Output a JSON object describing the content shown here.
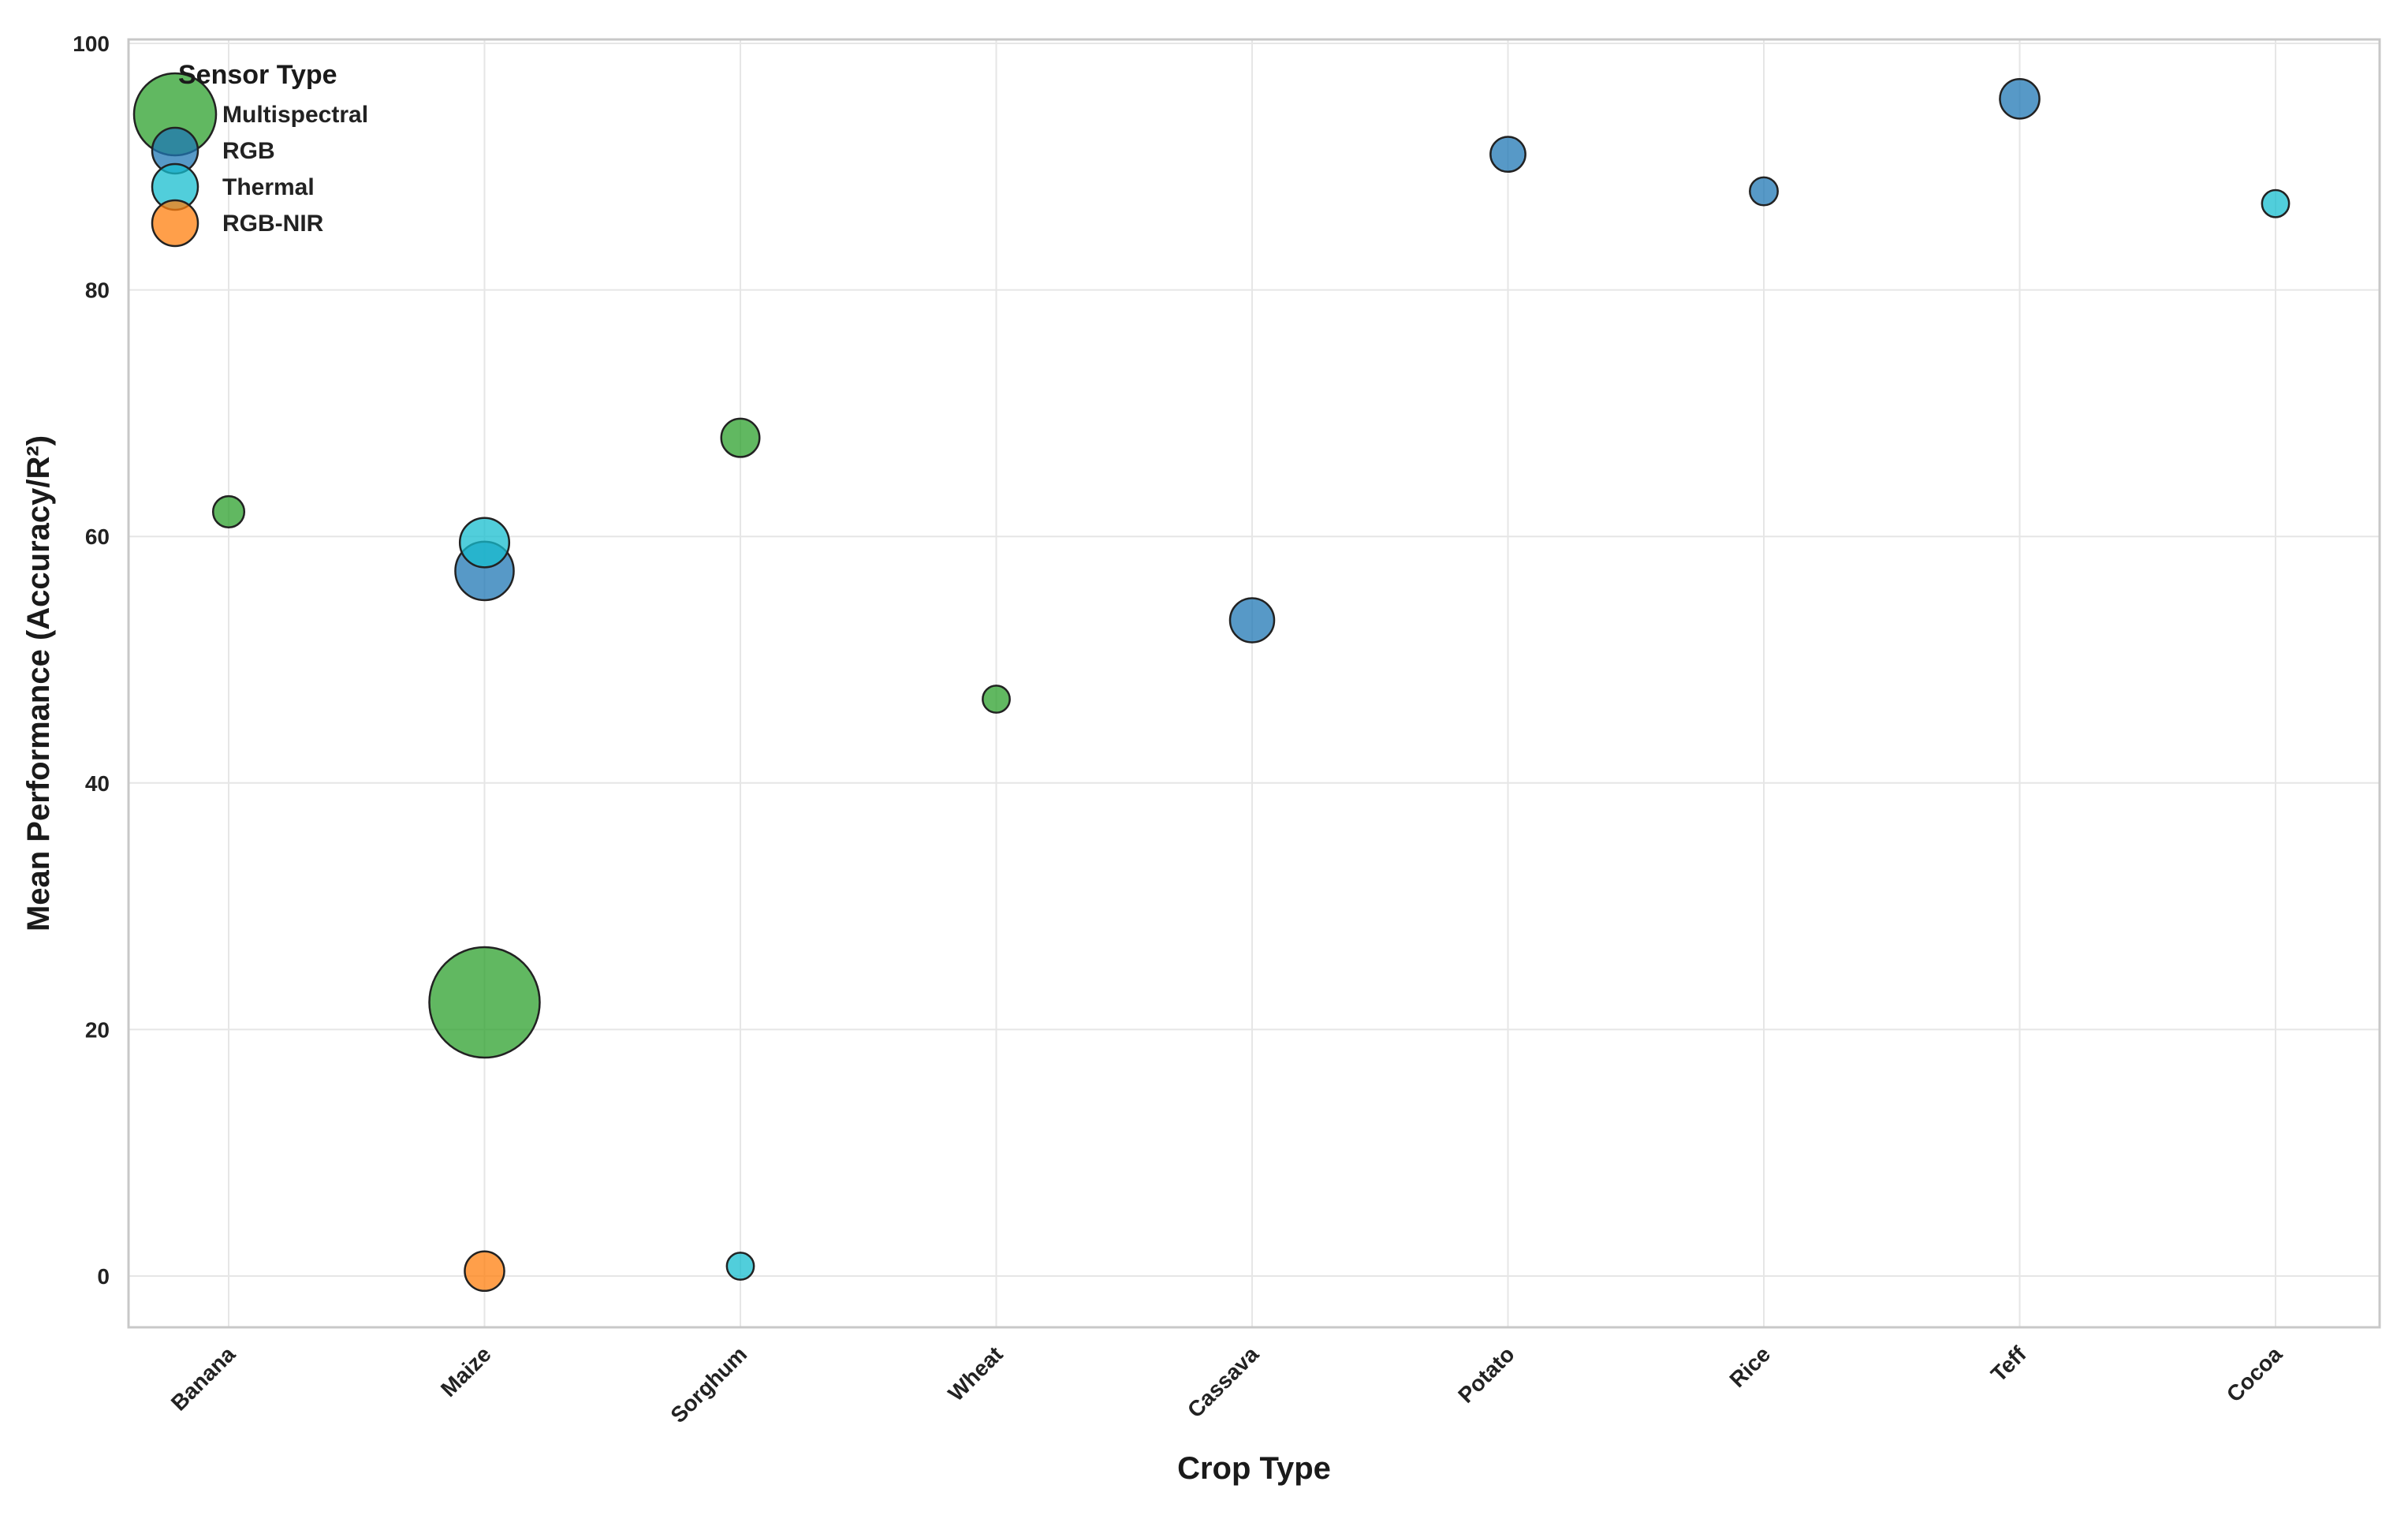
{
  "chart_data": {
    "type": "scatter",
    "title": "",
    "xlabel": "Crop Type",
    "ylabel": "Mean Performance (Accuracy/R²)",
    "categories": [
      "Banana",
      "Maize",
      "Sorghum",
      "Wheat",
      "Cassava",
      "Potato",
      "Rice",
      "Teff",
      "Cocoa"
    ],
    "ylim": [
      -4.3,
      100
    ],
    "yticks": [
      0,
      20,
      40,
      60,
      80,
      100
    ],
    "grid": true,
    "bubble_size_encoded": true,
    "legend": {
      "title": "Sensor Type",
      "placement": "top-left",
      "entries": [
        "Multispectral",
        "RGB",
        "Thermal",
        "RGB-NIR"
      ]
    },
    "series": [
      {
        "name": "Multispectral",
        "color": "#2ca02c",
        "points": [
          {
            "x": "Banana",
            "y": 62.0,
            "size": 2
          },
          {
            "x": "Maize",
            "y": 22.2,
            "size": 25
          },
          {
            "x": "Sorghum",
            "y": 68.0,
            "size": 3
          },
          {
            "x": "Wheat",
            "y": 46.8,
            "size": 1.5
          }
        ]
      },
      {
        "name": "RGB",
        "color": "#1f77b4",
        "points": [
          {
            "x": "Maize",
            "y": 57.2,
            "size": 7
          },
          {
            "x": "Cassava",
            "y": 53.2,
            "size": 4
          },
          {
            "x": "Potato",
            "y": 91.0,
            "size": 2.5
          },
          {
            "x": "Rice",
            "y": 88.0,
            "size": 1.6
          },
          {
            "x": "Teff",
            "y": 95.5,
            "size": 3.2
          }
        ]
      },
      {
        "name": "Thermal",
        "color": "#17becf",
        "points": [
          {
            "x": "Maize",
            "y": 59.5,
            "size": 5
          },
          {
            "x": "Sorghum",
            "y": 0.8,
            "size": 1.5
          },
          {
            "x": "Cocoa",
            "y": 87.0,
            "size": 1.5
          }
        ]
      },
      {
        "name": "RGB-NIR",
        "color": "#ff7f0e",
        "points": [
          {
            "x": "Maize",
            "y": 0.4,
            "size": 3.2
          }
        ]
      }
    ],
    "legend_marker_size": 12
  }
}
